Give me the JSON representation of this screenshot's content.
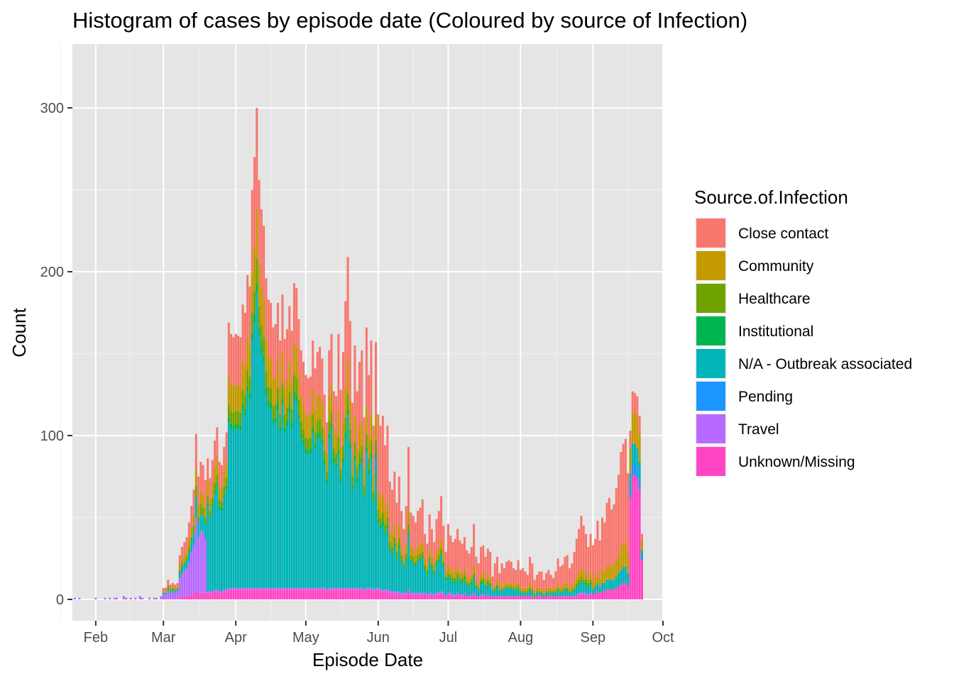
{
  "chart_data": {
    "type": "bar",
    "stacked": true,
    "title": "Histogram of cases by episode date (Coloured by source of Infection)",
    "xlabel": "Episode Date",
    "ylabel": "Count",
    "x_ticks": [
      "Feb",
      "Mar",
      "Apr",
      "May",
      "Jun",
      "Jul",
      "Aug",
      "Sep",
      "Oct"
    ],
    "y_ticks": [
      "0",
      "100",
      "200",
      "300"
    ],
    "ylim": [
      -13,
      339
    ],
    "xlim": [
      "2020-01-22",
      "2020-10-01"
    ],
    "panel_background": "#e5e5e5",
    "grid": true,
    "legend": {
      "title": "Source.of.Infection",
      "position": "right"
    },
    "series": [
      {
        "name": "Close contact",
        "color": "#f8766d"
      },
      {
        "name": "Community",
        "color": "#c49a00"
      },
      {
        "name": "Healthcare",
        "color": "#6ea300"
      },
      {
        "name": "Institutional",
        "color": "#00b550"
      },
      {
        "name": "N/A - Outbreak associated",
        "color": "#00b4b8"
      },
      {
        "name": "Pending",
        "color": "#1b95ff"
      },
      {
        "name": "Travel",
        "color": "#b76aff"
      },
      {
        "name": "Unknown/Missing",
        "color": "#ff45c4"
      }
    ],
    "dates": [
      "2020-01-23",
      "2020-01-25",
      "2020-02-01",
      "2020-02-05",
      "2020-02-07",
      "2020-02-09",
      "2020-02-10",
      "2020-02-13",
      "2020-02-14",
      "2020-02-16",
      "2020-02-18",
      "2020-02-20",
      "2020-02-21",
      "2020-02-24",
      "2020-02-26",
      "2020-02-27",
      "2020-02-29",
      "2020-03-01",
      "2020-03-02",
      "2020-03-03",
      "2020-03-04",
      "2020-03-05",
      "2020-03-06",
      "2020-03-07",
      "2020-03-08",
      "2020-03-09",
      "2020-03-10",
      "2020-03-11",
      "2020-03-12",
      "2020-03-13",
      "2020-03-14",
      "2020-03-15",
      "2020-03-16",
      "2020-03-17",
      "2020-03-18",
      "2020-03-19",
      "2020-03-20",
      "2020-03-21",
      "2020-03-22",
      "2020-03-23",
      "2020-03-24",
      "2020-03-25",
      "2020-03-26",
      "2020-03-27",
      "2020-03-28",
      "2020-03-29",
      "2020-03-30",
      "2020-03-31",
      "2020-04-01",
      "2020-04-02",
      "2020-04-03",
      "2020-04-04",
      "2020-04-05",
      "2020-04-06",
      "2020-04-07",
      "2020-04-08",
      "2020-04-09",
      "2020-04-10",
      "2020-04-11",
      "2020-04-12",
      "2020-04-13",
      "2020-04-14",
      "2020-04-15",
      "2020-04-16",
      "2020-04-17",
      "2020-04-18",
      "2020-04-19",
      "2020-04-20",
      "2020-04-21",
      "2020-04-22",
      "2020-04-23",
      "2020-04-24",
      "2020-04-25",
      "2020-04-26",
      "2020-04-27",
      "2020-04-28",
      "2020-04-29",
      "2020-04-30",
      "2020-05-01",
      "2020-05-02",
      "2020-05-03",
      "2020-05-04",
      "2020-05-05",
      "2020-05-06",
      "2020-05-07",
      "2020-05-08",
      "2020-05-09",
      "2020-05-10",
      "2020-05-11",
      "2020-05-12",
      "2020-05-13",
      "2020-05-14",
      "2020-05-15",
      "2020-05-16",
      "2020-05-17",
      "2020-05-18",
      "2020-05-19",
      "2020-05-20",
      "2020-05-21",
      "2020-05-22",
      "2020-05-23",
      "2020-05-24",
      "2020-05-25",
      "2020-05-26",
      "2020-05-27",
      "2020-05-28",
      "2020-05-29",
      "2020-05-30",
      "2020-05-31",
      "2020-06-01",
      "2020-06-02",
      "2020-06-03",
      "2020-06-04",
      "2020-06-05",
      "2020-06-06",
      "2020-06-07",
      "2020-06-08",
      "2020-06-09",
      "2020-06-10",
      "2020-06-11",
      "2020-06-12",
      "2020-06-13",
      "2020-06-14",
      "2020-06-15",
      "2020-06-16",
      "2020-06-17",
      "2020-06-18",
      "2020-06-19",
      "2020-06-20",
      "2020-06-21",
      "2020-06-22",
      "2020-06-23",
      "2020-06-24",
      "2020-06-25",
      "2020-06-26",
      "2020-06-27",
      "2020-06-28",
      "2020-06-29",
      "2020-06-30",
      "2020-07-01",
      "2020-07-02",
      "2020-07-03",
      "2020-07-04",
      "2020-07-05",
      "2020-07-06",
      "2020-07-07",
      "2020-07-08",
      "2020-07-09",
      "2020-07-10",
      "2020-07-11",
      "2020-07-12",
      "2020-07-13",
      "2020-07-14",
      "2020-07-15",
      "2020-07-16",
      "2020-07-17",
      "2020-07-18",
      "2020-07-19",
      "2020-07-20",
      "2020-07-21",
      "2020-07-22",
      "2020-07-23",
      "2020-07-24",
      "2020-07-25",
      "2020-07-26",
      "2020-07-27",
      "2020-07-28",
      "2020-07-29",
      "2020-07-30",
      "2020-07-31",
      "2020-08-01",
      "2020-08-02",
      "2020-08-03",
      "2020-08-04",
      "2020-08-05",
      "2020-08-06",
      "2020-08-07",
      "2020-08-08",
      "2020-08-09",
      "2020-08-10",
      "2020-08-11",
      "2020-08-12",
      "2020-08-13",
      "2020-08-14",
      "2020-08-15",
      "2020-08-16",
      "2020-08-17",
      "2020-08-18",
      "2020-08-19",
      "2020-08-20",
      "2020-08-21",
      "2020-08-22",
      "2020-08-23",
      "2020-08-24",
      "2020-08-25",
      "2020-08-26",
      "2020-08-27",
      "2020-08-28",
      "2020-08-29",
      "2020-08-30",
      "2020-08-31",
      "2020-09-01",
      "2020-09-02",
      "2020-09-03",
      "2020-09-04",
      "2020-09-05",
      "2020-09-06",
      "2020-09-07",
      "2020-09-08",
      "2020-09-09",
      "2020-09-10",
      "2020-09-11",
      "2020-09-12",
      "2020-09-13",
      "2020-09-14",
      "2020-09-15",
      "2020-09-16",
      "2020-09-17",
      "2020-09-18",
      "2020-09-19",
      "2020-09-20",
      "2020-09-21",
      "2020-09-22"
    ],
    "totals": [
      1,
      1,
      1,
      1,
      1,
      1,
      1,
      2,
      1,
      1,
      1,
      2,
      1,
      1,
      1,
      1,
      2,
      7,
      7,
      12,
      9,
      10,
      9,
      10,
      27,
      32,
      35,
      38,
      47,
      57,
      67,
      101,
      75,
      84,
      82,
      73,
      86,
      74,
      85,
      97,
      105,
      84,
      82,
      93,
      102,
      169,
      162,
      160,
      162,
      161,
      160,
      180,
      175,
      198,
      191,
      250,
      270,
      300,
      256,
      238,
      228,
      196,
      183,
      181,
      166,
      168,
      181,
      158,
      186,
      159,
      165,
      179,
      164,
      193,
      190,
      171,
      152,
      145,
      137,
      135,
      136,
      158,
      141,
      151,
      154,
      147,
      125,
      108,
      152,
      162,
      127,
      124,
      162,
      128,
      151,
      182,
      209,
      170,
      120,
      155,
      127,
      145,
      152,
      111,
      166,
      137,
      158,
      106,
      157,
      113,
      106,
      112,
      94,
      106,
      72,
      67,
      78,
      59,
      75,
      54,
      43,
      57,
      93,
      53,
      51,
      47,
      54,
      56,
      61,
      40,
      34,
      52,
      43,
      35,
      49,
      54,
      63,
      45,
      29,
      46,
      39,
      35,
      37,
      43,
      36,
      34,
      38,
      30,
      28,
      32,
      46,
      26,
      22,
      32,
      33,
      26,
      31,
      29,
      14,
      22,
      26,
      16,
      22,
      19,
      23,
      24,
      23,
      19,
      18,
      24,
      18,
      19,
      17,
      15,
      26,
      22,
      12,
      15,
      17,
      17,
      12,
      16,
      18,
      15,
      13,
      17,
      25,
      20,
      21,
      26,
      27,
      19,
      22,
      29,
      37,
      43,
      51,
      45,
      40,
      32,
      40,
      33,
      37,
      48,
      36,
      50,
      47,
      59,
      62,
      55,
      58,
      68,
      76,
      90,
      95,
      98,
      77,
      103,
      127,
      126,
      124,
      112,
      40,
      17,
      10
    ]
  }
}
